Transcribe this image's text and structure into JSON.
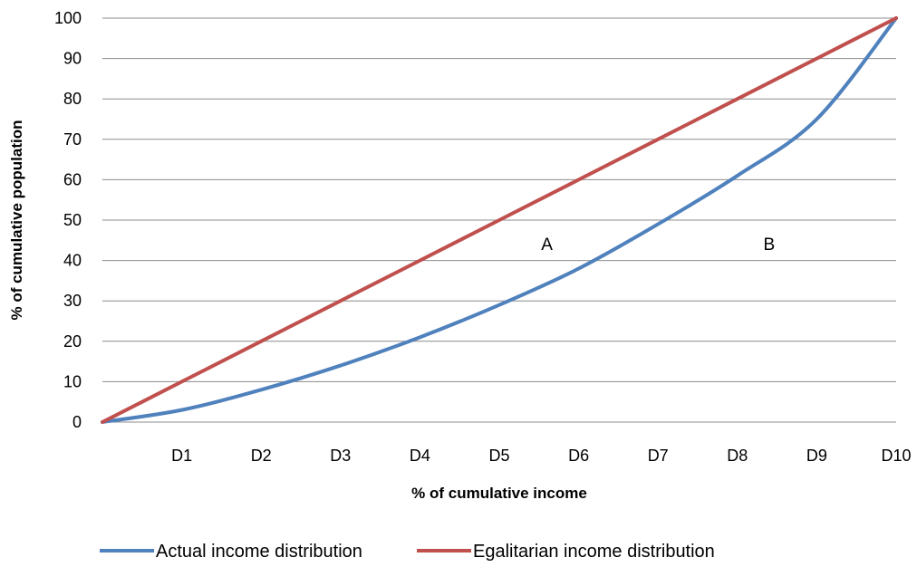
{
  "chart_data": {
    "type": "line",
    "title": "",
    "xlabel": "% of cumulative income",
    "ylabel": "% of cumulative population",
    "ylim": [
      0,
      100
    ],
    "yticks": [
      0,
      10,
      20,
      30,
      40,
      50,
      60,
      70,
      80,
      90,
      100
    ],
    "categories": [
      "D1",
      "D2",
      "D3",
      "D4",
      "D5",
      "D6",
      "D7",
      "D8",
      "D9",
      "D10"
    ],
    "x": [
      0,
      1,
      2,
      3,
      4,
      5,
      6,
      7,
      8,
      9,
      10
    ],
    "series": [
      {
        "name": "Actual income distribution",
        "color": "#4F81BD",
        "values": [
          0,
          3,
          8,
          14,
          21,
          29,
          38,
          49,
          61,
          75,
          100
        ]
      },
      {
        "name": "Egalitarian income distribution",
        "color": "#C0504D",
        "values": [
          0,
          10,
          20,
          30,
          40,
          50,
          60,
          70,
          80,
          90,
          100
        ]
      }
    ],
    "annotations": [
      {
        "text": "A",
        "x": 5.6,
        "y": 44
      },
      {
        "text": "B",
        "x": 8.4,
        "y": 44
      }
    ],
    "grid": true,
    "legend": "bottom"
  }
}
